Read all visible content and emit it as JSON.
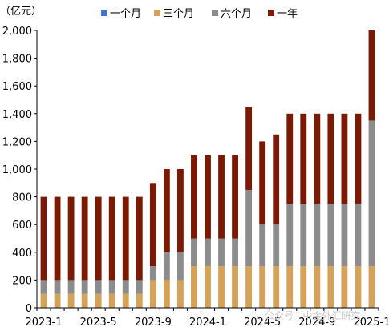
{
  "chart_data": {
    "type": "bar",
    "stacked": true,
    "unit_label": "（亿元）",
    "legend_position": "top",
    "grid": false,
    "ylim": [
      0,
      2000
    ],
    "yticks": [
      0,
      200,
      400,
      600,
      800,
      1000,
      1200,
      1400,
      1600,
      1800,
      2000
    ],
    "ytick_labels": [
      "0",
      "200",
      "400",
      "600",
      "800",
      "1,000",
      "1,200",
      "1,400",
      "1,600",
      "1,800",
      "2,000"
    ],
    "xtick_labels": [
      "2023-1",
      "2023-5",
      "2023-9",
      "2024-1",
      "2024-5",
      "2024-9",
      "2025-1"
    ],
    "xtick_positions": [
      0,
      4,
      8,
      12,
      16,
      20,
      24
    ],
    "categories": [
      "2023-1",
      "2023-2",
      "2023-3",
      "2023-4",
      "2023-5",
      "2023-6",
      "2023-7",
      "2023-8",
      "2023-9",
      "2023-10",
      "2023-11",
      "2023-12",
      "2024-1",
      "2024-2",
      "2024-3",
      "2024-4",
      "2024-5",
      "2024-6",
      "2024-7",
      "2024-8",
      "2024-9",
      "2024-10",
      "2024-11",
      "2024-12",
      "2025-1"
    ],
    "series": [
      {
        "name": "一个月",
        "color": "#4472c4",
        "values": [
          0,
          0,
          0,
          0,
          0,
          0,
          0,
          0,
          0,
          0,
          0,
          0,
          0,
          0,
          0,
          0,
          0,
          0,
          0,
          0,
          0,
          0,
          0,
          0,
          0
        ]
      },
      {
        "name": "三个月",
        "color": "#d4a259",
        "values": [
          100,
          100,
          100,
          100,
          100,
          100,
          100,
          100,
          200,
          200,
          200,
          300,
          300,
          300,
          300,
          300,
          300,
          300,
          300,
          300,
          300,
          300,
          300,
          300,
          300
        ]
      },
      {
        "name": "六个月",
        "color": "#8c8c8c",
        "values": [
          100,
          100,
          100,
          100,
          100,
          100,
          100,
          100,
          100,
          200,
          200,
          200,
          200,
          200,
          200,
          550,
          300,
          300,
          450,
          450,
          450,
          450,
          450,
          450,
          1050
        ]
      },
      {
        "name": "一年",
        "color": "#7b1a04",
        "values": [
          600,
          600,
          600,
          600,
          600,
          600,
          600,
          600,
          600,
          600,
          600,
          600,
          600,
          600,
          600,
          600,
          600,
          650,
          650,
          650,
          650,
          650,
          650,
          650,
          650
        ]
      }
    ]
  },
  "watermark": "公众号 · 中金外汇研究"
}
